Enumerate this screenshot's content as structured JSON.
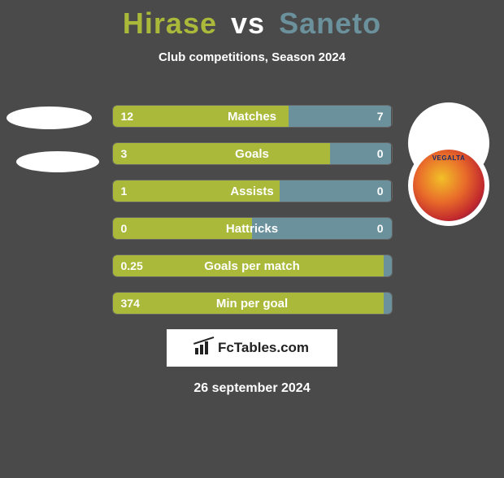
{
  "header": {
    "player1": "Hirase",
    "vs": "vs",
    "player2": "Saneto",
    "subtitle": "Club competitions, Season 2024"
  },
  "colors": {
    "p1": "#aab93a",
    "p2": "#6a919c",
    "bg": "#4a4a4a"
  },
  "stats": [
    {
      "label": "Matches",
      "left_val": "12",
      "right_val": "7",
      "left_pct": 63,
      "right_pct": 37
    },
    {
      "label": "Goals",
      "left_val": "3",
      "right_val": "0",
      "left_pct": 78,
      "right_pct": 22
    },
    {
      "label": "Assists",
      "left_val": "1",
      "right_val": "0",
      "left_pct": 60,
      "right_pct": 40
    },
    {
      "label": "Hattricks",
      "left_val": "0",
      "right_val": "0",
      "left_pct": 50,
      "right_pct": 50
    },
    {
      "label": "Goals per match",
      "left_val": "0.25",
      "right_val": "",
      "left_pct": 98,
      "right_pct": 2
    },
    {
      "label": "Min per goal",
      "left_val": "374",
      "right_val": "",
      "left_pct": 100,
      "right_pct": 0
    }
  ],
  "badge": {
    "name": "vegalta-sendai",
    "text": "VEGALTA"
  },
  "footer": {
    "brand": "FcTables.com",
    "date": "26 september 2024"
  }
}
